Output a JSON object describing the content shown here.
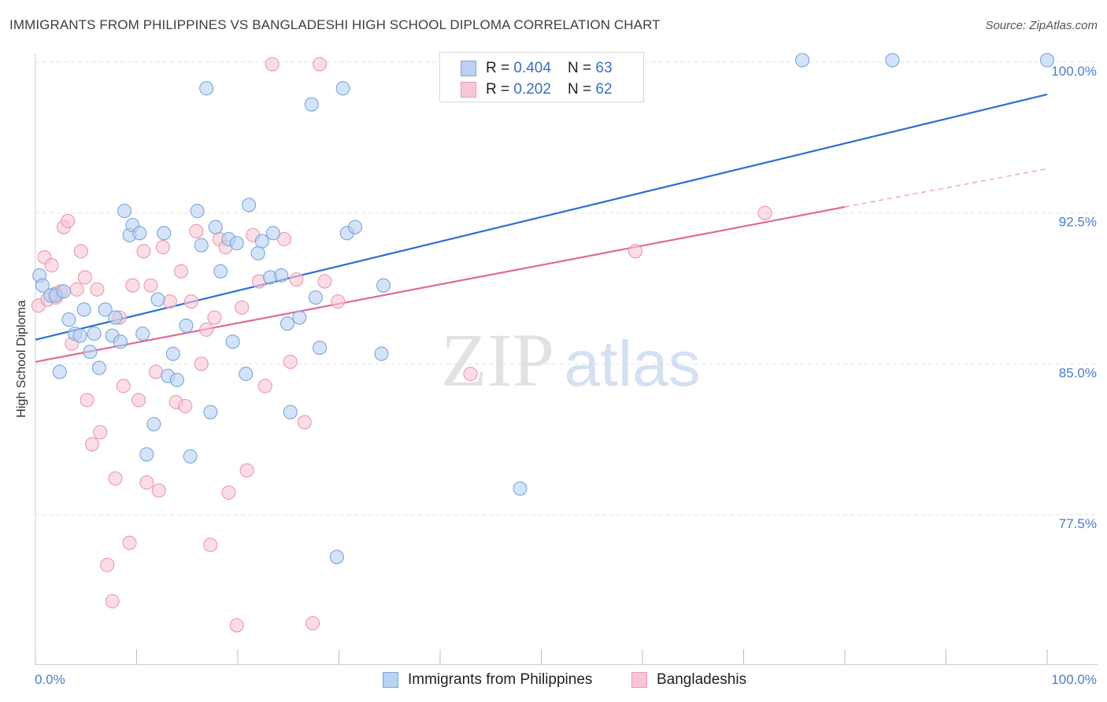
{
  "title": "IMMIGRANTS FROM PHILIPPINES VS BANGLADESHI HIGH SCHOOL DIPLOMA CORRELATION CHART",
  "source": "Source: ZipAtlas.com",
  "watermark": {
    "zip": "ZIP",
    "atlas": "atlas"
  },
  "legend_top": [
    {
      "r_label": "R = ",
      "r_value": "0.404",
      "n_label": "N = ",
      "n_value": "63"
    },
    {
      "r_label": "R = ",
      "r_value": "0.202",
      "n_label": "N = ",
      "n_value": "62"
    }
  ],
  "colors": {
    "blue_fill": "#b9d1f2",
    "blue_stroke": "#7aa6e0",
    "blue_line": "#2b6fcf",
    "pink_fill": "#f8c7d6",
    "pink_stroke": "#ec98b2",
    "pink_line": "#e06b95",
    "tick_label": "#4a7bd0",
    "grid": "#e3e3e3"
  },
  "chart_data": {
    "type": "scatter",
    "title": "IMMIGRANTS FROM PHILIPPINES VS BANGLADESHI HIGH SCHOOL DIPLOMA CORRELATION CHART",
    "xlabel": "",
    "ylabel": "High School Diploma",
    "xlim": [
      0,
      100
    ],
    "ylim": [
      70.0,
      101.0
    ],
    "x_tick_labels": [
      "0.0%",
      "100.0%"
    ],
    "y_ticks": [
      77.5,
      85.0,
      92.5,
      100.0
    ],
    "y_tick_labels": [
      "77.5%",
      "85.0%",
      "92.5%",
      "100.0%"
    ],
    "grid": "horizontal dashed",
    "legend_placement": "bottom",
    "series": [
      {
        "name": "Immigrants from Philippines",
        "color": "blue",
        "R": 0.404,
        "N": 63,
        "trend": {
          "x": [
            0,
            100
          ],
          "y": [
            86.2,
            98.4
          ]
        },
        "points": [
          [
            0.4,
            89.4
          ],
          [
            0.7,
            88.9
          ],
          [
            1.5,
            88.4
          ],
          [
            2.0,
            88.4
          ],
          [
            2.8,
            88.6
          ],
          [
            2.4,
            84.6
          ],
          [
            3.3,
            87.2
          ],
          [
            3.9,
            86.5
          ],
          [
            4.4,
            86.4
          ],
          [
            4.8,
            87.7
          ],
          [
            5.4,
            85.6
          ],
          [
            5.8,
            86.5
          ],
          [
            6.3,
            84.8
          ],
          [
            6.9,
            87.7
          ],
          [
            7.6,
            86.4
          ],
          [
            7.9,
            87.3
          ],
          [
            8.4,
            86.1
          ],
          [
            8.8,
            92.6
          ],
          [
            9.3,
            91.4
          ],
          [
            9.6,
            91.9
          ],
          [
            10.3,
            91.5
          ],
          [
            10.6,
            86.5
          ],
          [
            11.0,
            80.5
          ],
          [
            11.7,
            82.0
          ],
          [
            12.1,
            88.2
          ],
          [
            12.7,
            91.5
          ],
          [
            13.1,
            84.4
          ],
          [
            13.6,
            85.5
          ],
          [
            14.0,
            84.2
          ],
          [
            14.9,
            86.9
          ],
          [
            15.3,
            80.4
          ],
          [
            16.0,
            92.6
          ],
          [
            16.4,
            90.9
          ],
          [
            16.9,
            98.7
          ],
          [
            17.3,
            82.6
          ],
          [
            17.8,
            91.8
          ],
          [
            18.3,
            89.6
          ],
          [
            19.1,
            91.2
          ],
          [
            19.5,
            86.1
          ],
          [
            19.9,
            91.0
          ],
          [
            20.8,
            84.5
          ],
          [
            21.1,
            92.9
          ],
          [
            22.0,
            90.5
          ],
          [
            22.4,
            91.1
          ],
          [
            23.2,
            89.3
          ],
          [
            23.5,
            91.5
          ],
          [
            24.3,
            89.4
          ],
          [
            24.9,
            87.0
          ],
          [
            25.2,
            82.6
          ],
          [
            26.1,
            87.3
          ],
          [
            27.3,
            97.9
          ],
          [
            27.7,
            88.3
          ],
          [
            28.1,
            85.8
          ],
          [
            29.8,
            75.4
          ],
          [
            30.4,
            98.7
          ],
          [
            30.8,
            91.5
          ],
          [
            31.6,
            91.8
          ],
          [
            34.2,
            85.5
          ],
          [
            34.4,
            88.9
          ],
          [
            47.9,
            78.8
          ],
          [
            75.8,
            100.1
          ],
          [
            84.7,
            100.1
          ],
          [
            100.0,
            100.1
          ]
        ]
      },
      {
        "name": "Bangladeshis",
        "color": "pink",
        "R": 0.202,
        "N": 62,
        "trend": {
          "x": [
            0,
            80
          ],
          "y": [
            85.1,
            92.8
          ],
          "dashed_to": {
            "x": 100,
            "y": 94.7
          }
        },
        "points": [
          [
            0.3,
            87.9
          ],
          [
            0.9,
            90.3
          ],
          [
            1.2,
            88.2
          ],
          [
            1.6,
            89.9
          ],
          [
            2.0,
            88.5
          ],
          [
            2.5,
            88.6
          ],
          [
            2.8,
            91.8
          ],
          [
            3.2,
            92.1
          ],
          [
            3.6,
            86.0
          ],
          [
            4.1,
            88.7
          ],
          [
            4.5,
            90.6
          ],
          [
            4.9,
            89.3
          ],
          [
            5.1,
            83.2
          ],
          [
            5.6,
            81.0
          ],
          [
            6.1,
            88.7
          ],
          [
            6.4,
            81.6
          ],
          [
            7.1,
            75.0
          ],
          [
            7.6,
            73.2
          ],
          [
            7.9,
            79.3
          ],
          [
            8.3,
            87.3
          ],
          [
            8.7,
            83.9
          ],
          [
            9.3,
            76.1
          ],
          [
            9.6,
            88.9
          ],
          [
            10.2,
            83.2
          ],
          [
            10.7,
            90.6
          ],
          [
            11.0,
            79.1
          ],
          [
            11.4,
            88.9
          ],
          [
            11.9,
            84.6
          ],
          [
            12.2,
            78.7
          ],
          [
            12.6,
            90.8
          ],
          [
            13.3,
            88.1
          ],
          [
            13.9,
            83.1
          ],
          [
            14.4,
            89.6
          ],
          [
            14.8,
            82.9
          ],
          [
            15.4,
            88.1
          ],
          [
            15.9,
            91.6
          ],
          [
            16.4,
            85.0
          ],
          [
            16.9,
            86.7
          ],
          [
            17.3,
            76.0
          ],
          [
            17.7,
            87.3
          ],
          [
            18.2,
            91.2
          ],
          [
            18.8,
            90.8
          ],
          [
            19.1,
            78.6
          ],
          [
            19.9,
            72.0
          ],
          [
            20.4,
            87.8
          ],
          [
            20.9,
            79.7
          ],
          [
            21.5,
            91.4
          ],
          [
            22.1,
            89.1
          ],
          [
            22.7,
            83.9
          ],
          [
            23.4,
            99.9
          ],
          [
            24.6,
            91.2
          ],
          [
            25.2,
            85.1
          ],
          [
            25.8,
            89.2
          ],
          [
            26.6,
            82.1
          ],
          [
            27.4,
            72.1
          ],
          [
            28.1,
            99.9
          ],
          [
            28.6,
            89.1
          ],
          [
            29.9,
            88.1
          ],
          [
            43.0,
            84.5
          ],
          [
            59.3,
            90.6
          ],
          [
            72.1,
            92.5
          ],
          [
            2.0,
            88.3
          ]
        ]
      }
    ]
  },
  "legend_bottom": [
    "Immigrants from Philippines",
    "Bangladeshis"
  ]
}
